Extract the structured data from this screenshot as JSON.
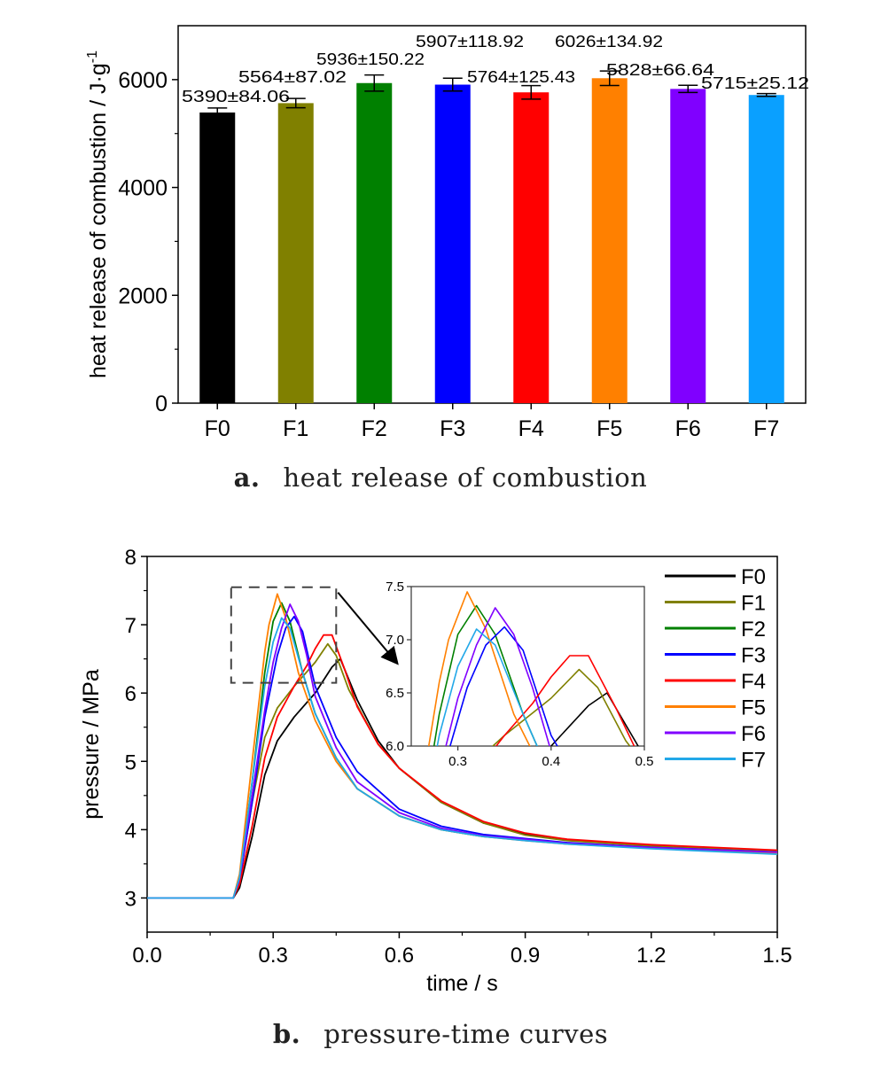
{
  "chart_data": [
    {
      "type": "bar",
      "caption_letter": "a.",
      "caption_text": "heat release of combustion",
      "ylabel": "heat release of combustion / J·g",
      "ylabel_superscript": "-1",
      "ylim": [
        0,
        7000
      ],
      "yticks": [
        0,
        2000,
        4000,
        6000
      ],
      "categories": [
        "F0",
        "F1",
        "F2",
        "F3",
        "F4",
        "F5",
        "F6",
        "F7"
      ],
      "values": [
        5390,
        5564,
        5936,
        5907,
        5764,
        6026,
        5828,
        5715
      ],
      "errors": [
        84.06,
        87.02,
        150.22,
        118.92,
        125.43,
        134.92,
        66.64,
        25.12
      ],
      "data_labels": [
        "5390±84.06",
        "5564±87.02",
        "5936±150.22",
        "5907±118.92",
        "5764±125.43",
        "6026±134.92",
        "5828±66.64",
        "5715±25.12"
      ],
      "colors": [
        "#000000",
        "#808000",
        "#008000",
        "#0000ff",
        "#ff0000",
        "#ff8000",
        "#8000ff",
        "#0aa0ff"
      ]
    },
    {
      "type": "line",
      "caption_letter": "b.",
      "caption_text": "pressure-time curves",
      "xlabel": "time / s",
      "ylabel": "pressure / MPa",
      "xlim": [
        0.0,
        1.5
      ],
      "ylim": [
        2.5,
        8.0
      ],
      "xticks": [
        "0.0",
        "0.3",
        "0.6",
        "0.9",
        "1.2",
        "1.5"
      ],
      "yticks": [
        "3",
        "4",
        "5",
        "6",
        "7",
        "8"
      ],
      "legend_position": "top-right",
      "inset": {
        "xlim": [
          0.25,
          0.5
        ],
        "ylim": [
          6.0,
          7.5
        ],
        "xticks": [
          "0.3",
          "0.4",
          "0.5"
        ],
        "yticks": [
          "6.0",
          "6.5",
          "7.0",
          "7.5"
        ],
        "zoom_box": {
          "x": [
            0.2,
            0.45
          ],
          "y": [
            6.15,
            7.55
          ]
        }
      },
      "series": [
        {
          "name": "F0",
          "color": "#000000",
          "x": [
            0,
            0.205,
            0.22,
            0.25,
            0.28,
            0.31,
            0.35,
            0.4,
            0.44,
            0.46,
            0.5,
            0.55,
            0.6,
            0.7,
            0.8,
            0.9,
            1.0,
            1.2,
            1.5
          ],
          "y": [
            3.0,
            3.0,
            3.15,
            3.9,
            4.8,
            5.3,
            5.65,
            6.0,
            6.38,
            6.5,
            5.9,
            5.3,
            4.9,
            4.4,
            4.1,
            3.93,
            3.85,
            3.77,
            3.69
          ]
        },
        {
          "name": "F1",
          "color": "#808000",
          "x": [
            0,
            0.205,
            0.22,
            0.25,
            0.28,
            0.31,
            0.35,
            0.4,
            0.43,
            0.45,
            0.48,
            0.55,
            0.6,
            0.7,
            0.8,
            0.9,
            1.0,
            1.2,
            1.5
          ],
          "y": [
            3.0,
            3.0,
            3.25,
            4.4,
            5.35,
            5.78,
            6.1,
            6.45,
            6.72,
            6.55,
            6.05,
            5.25,
            4.9,
            4.4,
            4.1,
            3.92,
            3.84,
            3.76,
            3.69
          ]
        },
        {
          "name": "F2",
          "color": "#008000",
          "x": [
            0,
            0.205,
            0.22,
            0.25,
            0.28,
            0.3,
            0.32,
            0.34,
            0.37,
            0.4,
            0.45,
            0.5,
            0.6,
            0.7,
            0.8,
            0.9,
            1.0,
            1.2,
            1.5
          ],
          "y": [
            3.0,
            3.0,
            3.3,
            4.7,
            6.3,
            7.05,
            7.32,
            7.05,
            6.3,
            5.7,
            5.05,
            4.6,
            4.2,
            4.0,
            3.9,
            3.85,
            3.8,
            3.74,
            3.67
          ]
        },
        {
          "name": "F3",
          "color": "#0000ff",
          "x": [
            0,
            0.205,
            0.22,
            0.25,
            0.28,
            0.31,
            0.33,
            0.35,
            0.37,
            0.4,
            0.45,
            0.5,
            0.6,
            0.7,
            0.8,
            0.9,
            1.0,
            1.2,
            1.5
          ],
          "y": [
            3.0,
            3.0,
            3.25,
            4.4,
            5.65,
            6.55,
            6.95,
            7.12,
            6.9,
            6.1,
            5.35,
            4.85,
            4.3,
            4.05,
            3.93,
            3.87,
            3.81,
            3.74,
            3.67
          ]
        },
        {
          "name": "F4",
          "color": "#ff0000",
          "x": [
            0,
            0.205,
            0.22,
            0.25,
            0.28,
            0.31,
            0.35,
            0.38,
            0.4,
            0.42,
            0.44,
            0.47,
            0.5,
            0.55,
            0.6,
            0.7,
            0.8,
            0.9,
            1.0,
            1.2,
            1.5
          ],
          "y": [
            3.0,
            3.0,
            3.2,
            4.05,
            5.05,
            5.65,
            6.1,
            6.4,
            6.65,
            6.85,
            6.85,
            6.35,
            5.8,
            5.25,
            4.9,
            4.42,
            4.12,
            3.95,
            3.86,
            3.78,
            3.7
          ]
        },
        {
          "name": "F5",
          "color": "#ff8000",
          "x": [
            0,
            0.205,
            0.22,
            0.25,
            0.28,
            0.29,
            0.31,
            0.33,
            0.36,
            0.4,
            0.45,
            0.5,
            0.6,
            0.7,
            0.8,
            0.9,
            1.0,
            1.2,
            1.5
          ],
          "y": [
            3.0,
            3.0,
            3.35,
            5.0,
            6.6,
            7.0,
            7.45,
            7.1,
            6.3,
            5.6,
            5.0,
            4.6,
            4.2,
            4.0,
            3.9,
            3.84,
            3.79,
            3.73,
            3.66
          ]
        },
        {
          "name": "F6",
          "color": "#8000ff",
          "x": [
            0,
            0.205,
            0.22,
            0.25,
            0.28,
            0.3,
            0.32,
            0.34,
            0.36,
            0.38,
            0.4,
            0.45,
            0.5,
            0.6,
            0.7,
            0.8,
            0.9,
            1.0,
            1.2,
            1.5
          ],
          "y": [
            3.0,
            3.0,
            3.28,
            4.5,
            5.75,
            6.45,
            6.95,
            7.3,
            7.05,
            6.55,
            5.95,
            5.2,
            4.7,
            4.25,
            4.02,
            3.91,
            3.86,
            3.8,
            3.74,
            3.67
          ]
        },
        {
          "name": "F7",
          "color": "#22a8e8",
          "x": [
            0,
            0.205,
            0.22,
            0.25,
            0.28,
            0.3,
            0.32,
            0.34,
            0.37,
            0.4,
            0.45,
            0.5,
            0.6,
            0.7,
            0.8,
            0.9,
            1.0,
            1.2,
            1.5
          ],
          "y": [
            3.0,
            3.0,
            3.3,
            4.7,
            6.1,
            6.75,
            7.1,
            6.95,
            6.3,
            5.7,
            5.05,
            4.6,
            4.2,
            4.0,
            3.9,
            3.84,
            3.79,
            3.72,
            3.64
          ]
        }
      ]
    }
  ]
}
